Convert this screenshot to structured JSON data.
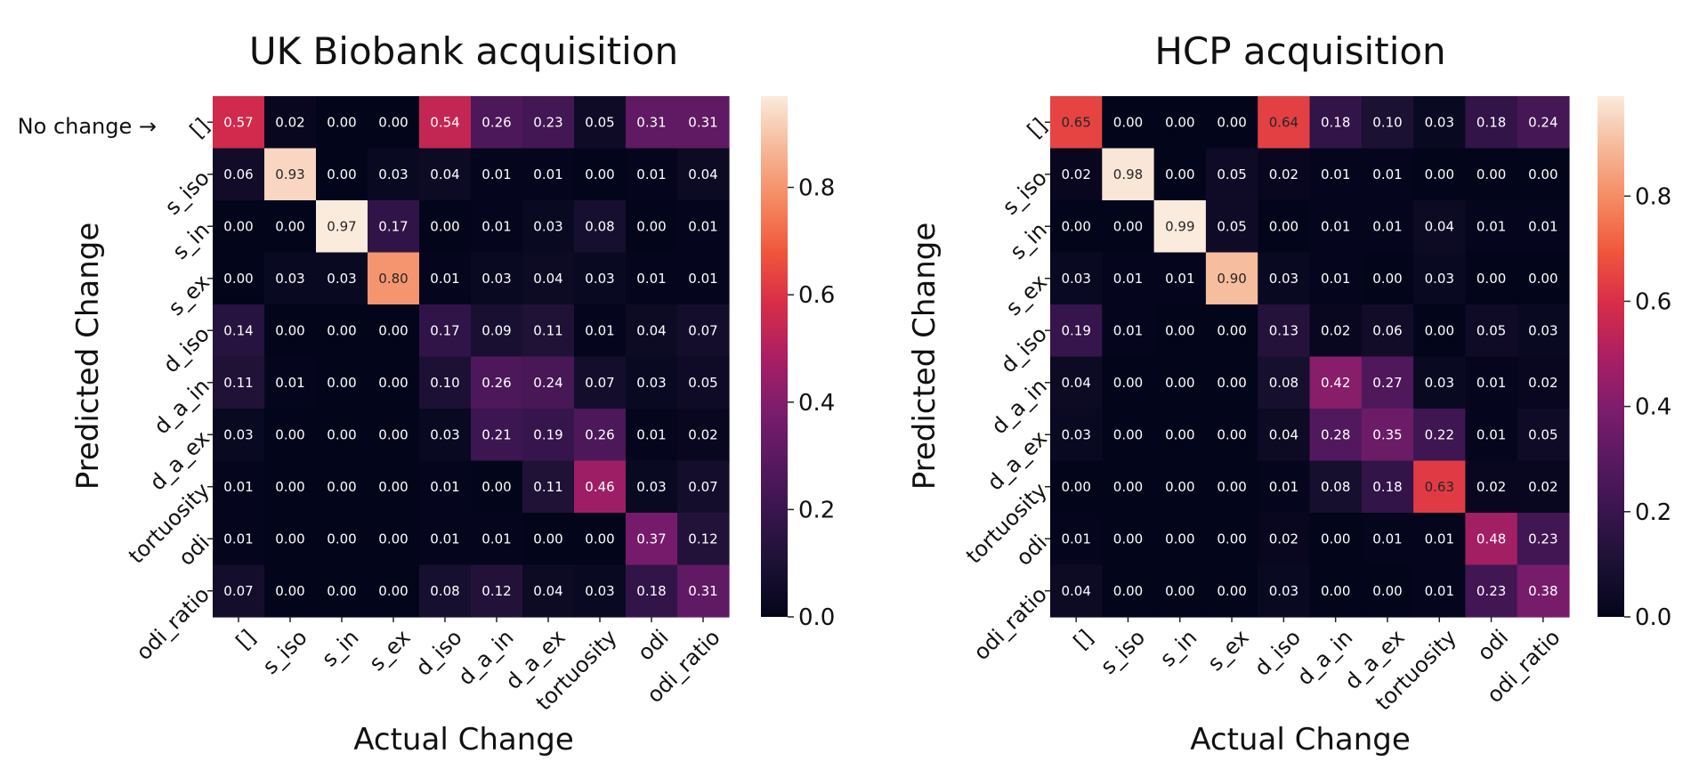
{
  "chart_data": [
    {
      "type": "heatmap",
      "title": "UK Biobank acquisition",
      "xlabel": "Actual Change",
      "ylabel": "Predicted Change",
      "annotation": "No change →",
      "x_categories": [
        "[]",
        "s_iso",
        "s_in",
        "s_ex",
        "d_iso",
        "d_a_in",
        "d_a_ex",
        "tortuosity",
        "odi",
        "odi_ratio"
      ],
      "y_categories": [
        "[]",
        "s_iso",
        "s_in",
        "s_ex",
        "d_iso",
        "d_a_in",
        "d_a_ex",
        "tortuosity",
        "odi",
        "odi_ratio"
      ],
      "values": [
        [
          "0.57",
          "0.02",
          "0.00",
          "0.00",
          "0.54",
          "0.26",
          "0.23",
          "0.05",
          "0.31",
          "0.31"
        ],
        [
          "0.06",
          "0.93",
          "0.00",
          "0.03",
          "0.04",
          "0.01",
          "0.01",
          "0.00",
          "0.01",
          "0.04"
        ],
        [
          "0.00",
          "0.00",
          "0.97",
          "0.17",
          "0.00",
          "0.01",
          "0.03",
          "0.08",
          "0.00",
          "0.01"
        ],
        [
          "0.00",
          "0.03",
          "0.03",
          "0.80",
          "0.01",
          "0.03",
          "0.04",
          "0.03",
          "0.01",
          "0.01"
        ],
        [
          "0.14",
          "0.00",
          "0.00",
          "0.00",
          "0.17",
          "0.09",
          "0.11",
          "0.01",
          "0.04",
          "0.07"
        ],
        [
          "0.11",
          "0.01",
          "0.00",
          "0.00",
          "0.10",
          "0.26",
          "0.24",
          "0.07",
          "0.03",
          "0.05"
        ],
        [
          "0.03",
          "0.00",
          "0.00",
          "0.00",
          "0.03",
          "0.21",
          "0.19",
          "0.26",
          "0.01",
          "0.02"
        ],
        [
          "0.01",
          "0.00",
          "0.00",
          "0.00",
          "0.01",
          "0.00",
          "0.11",
          "0.46",
          "0.03",
          "0.07"
        ],
        [
          "0.01",
          "0.00",
          "0.00",
          "0.00",
          "0.01",
          "0.01",
          "0.00",
          "0.00",
          "0.37",
          "0.12"
        ],
        [
          "0.07",
          "0.00",
          "0.00",
          "0.00",
          "0.08",
          "0.12",
          "0.04",
          "0.03",
          "0.18",
          "0.31"
        ]
      ],
      "colorbar": {
        "range": [
          0,
          0.97
        ],
        "ticks": [
          "0.0",
          "0.2",
          "0.4",
          "0.6",
          "0.8"
        ]
      }
    },
    {
      "type": "heatmap",
      "title": "HCP acquisition",
      "xlabel": "Actual Change",
      "ylabel": "Predicted Change",
      "x_categories": [
        "[]",
        "s_iso",
        "s_in",
        "s_ex",
        "d_iso",
        "d_a_in",
        "d_a_ex",
        "tortuosity",
        "odi",
        "odi_ratio"
      ],
      "y_categories": [
        "[]",
        "s_iso",
        "s_in",
        "s_ex",
        "d_iso",
        "d_a_in",
        "d_a_ex",
        "tortuosity",
        "odi",
        "odi_ratio"
      ],
      "values": [
        [
          "0.65",
          "0.00",
          "0.00",
          "0.00",
          "0.64",
          "0.18",
          "0.10",
          "0.03",
          "0.18",
          "0.24"
        ],
        [
          "0.02",
          "0.98",
          "0.00",
          "0.05",
          "0.02",
          "0.01",
          "0.01",
          "0.00",
          "0.00",
          "0.00"
        ],
        [
          "0.00",
          "0.00",
          "0.99",
          "0.05",
          "0.00",
          "0.01",
          "0.01",
          "0.04",
          "0.01",
          "0.01"
        ],
        [
          "0.03",
          "0.01",
          "0.01",
          "0.90",
          "0.03",
          "0.01",
          "0.00",
          "0.03",
          "0.00",
          "0.00"
        ],
        [
          "0.19",
          "0.01",
          "0.00",
          "0.00",
          "0.13",
          "0.02",
          "0.06",
          "0.00",
          "0.05",
          "0.03"
        ],
        [
          "0.04",
          "0.00",
          "0.00",
          "0.00",
          "0.08",
          "0.42",
          "0.27",
          "0.03",
          "0.01",
          "0.02"
        ],
        [
          "0.03",
          "0.00",
          "0.00",
          "0.00",
          "0.04",
          "0.28",
          "0.35",
          "0.22",
          "0.01",
          "0.05"
        ],
        [
          "0.00",
          "0.00",
          "0.00",
          "0.00",
          "0.01",
          "0.08",
          "0.18",
          "0.63",
          "0.02",
          "0.02"
        ],
        [
          "0.01",
          "0.00",
          "0.00",
          "0.00",
          "0.02",
          "0.00",
          "0.01",
          "0.01",
          "0.48",
          "0.23"
        ],
        [
          "0.04",
          "0.00",
          "0.00",
          "0.00",
          "0.03",
          "0.00",
          "0.00",
          "0.01",
          "0.23",
          "0.38"
        ]
      ],
      "colorbar": {
        "range": [
          0,
          0.99
        ],
        "ticks": [
          "0.0",
          "0.2",
          "0.4",
          "0.6",
          "0.8"
        ]
      }
    }
  ]
}
